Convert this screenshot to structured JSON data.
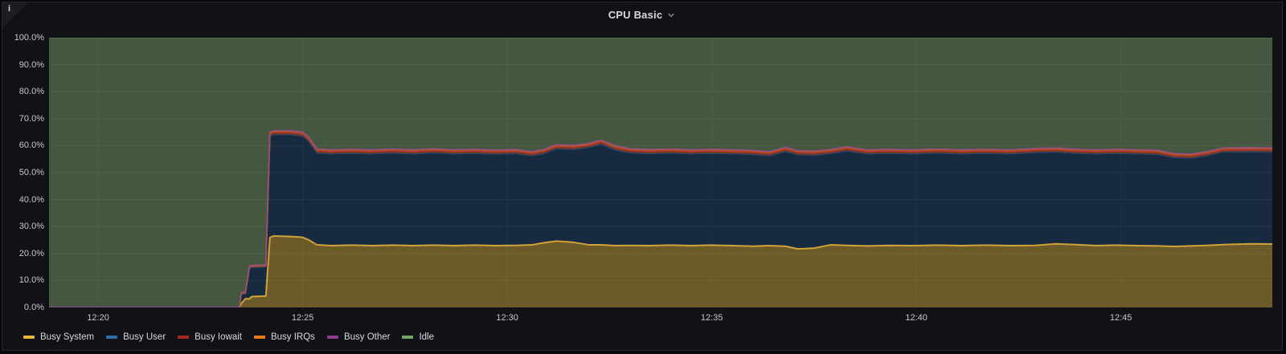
{
  "panel": {
    "title": "CPU Basic",
    "info_icon": "i"
  },
  "chart_data": {
    "type": "area",
    "stacked": true,
    "title": "CPU Basic",
    "unit": "percent",
    "x_unit": "minutes after 12:00",
    "x_range": [
      18.8,
      48.7
    ],
    "ylim": [
      0,
      100
    ],
    "grid": true,
    "legend_position": "bottom",
    "y_ticks": [
      {
        "v": 0,
        "label": "0.0%"
      },
      {
        "v": 10,
        "label": "10.0%"
      },
      {
        "v": 20,
        "label": "20.0%"
      },
      {
        "v": 30,
        "label": "30.0%"
      },
      {
        "v": 40,
        "label": "40.0%"
      },
      {
        "v": 50,
        "label": "50.0%"
      },
      {
        "v": 60,
        "label": "60.0%"
      },
      {
        "v": 70,
        "label": "70.0%"
      },
      {
        "v": 80,
        "label": "80.0%"
      },
      {
        "v": 90,
        "label": "90.0%"
      },
      {
        "v": 100,
        "label": "100.0%"
      }
    ],
    "x_ticks": [
      {
        "t": 20,
        "label": "12:20"
      },
      {
        "t": 25,
        "label": "12:25"
      },
      {
        "t": 30,
        "label": "12:30"
      },
      {
        "t": 35,
        "label": "12:35"
      },
      {
        "t": 40,
        "label": "12:40"
      },
      {
        "t": 45,
        "label": "12:45"
      }
    ],
    "t": [
      18.8,
      23.45,
      23.5,
      23.6,
      23.7,
      23.75,
      24.05,
      24.1,
      24.2,
      24.3,
      24.7,
      25.0,
      25.15,
      25.35,
      25.7,
      26.2,
      26.7,
      27.2,
      27.7,
      28.2,
      28.7,
      29.2,
      29.7,
      30.2,
      30.6,
      30.9,
      31.2,
      31.6,
      32.0,
      32.3,
      32.65,
      33.0,
      33.5,
      34.0,
      34.5,
      35.0,
      35.5,
      36.0,
      36.4,
      36.8,
      37.1,
      37.5,
      37.9,
      38.3,
      38.8,
      39.3,
      39.9,
      40.5,
      41.1,
      41.7,
      42.3,
      42.9,
      43.4,
      43.9,
      44.4,
      44.9,
      45.4,
      45.9,
      46.3,
      46.7,
      47.1,
      47.5,
      48.2,
      48.7
    ],
    "series": [
      {
        "name": "Busy System",
        "legend_color": "#EAB839",
        "line_color": "#CFA33A",
        "fill_color": "#6C5A28",
        "line_width": 2,
        "values": [
          0,
          0,
          1.5,
          3.2,
          3.2,
          4,
          4.2,
          4.2,
          26,
          26.5,
          26.3,
          26,
          25,
          23.2,
          22.9,
          23.1,
          22.9,
          23.1,
          22.9,
          23.1,
          22.9,
          23.1,
          22.9,
          23,
          23.2,
          24,
          24.6,
          24.2,
          23.2,
          23.2,
          22.9,
          23,
          22.9,
          23.1,
          22.9,
          23.1,
          22.9,
          22.7,
          22.9,
          22.7,
          21.7,
          22,
          23.2,
          23,
          22.8,
          23,
          22.9,
          23.1,
          22.9,
          23.1,
          22.9,
          23,
          23.6,
          23.3,
          22.9,
          23.1,
          22.9,
          22.8,
          22.6,
          22.8,
          23,
          23.3,
          23.6,
          23.5
        ]
      },
      {
        "name": "Busy User",
        "legend_color": "#2F6DA6",
        "line_color": "#2B4A6B",
        "fill_color": "#172A40",
        "line_width": 1.2,
        "values": [
          0,
          0,
          3.3,
          1.8,
          11.3,
          10.8,
          10.8,
          10.8,
          37.5,
          37.5,
          37.7,
          37.5,
          36.5,
          34,
          34,
          34,
          34,
          34.1,
          34,
          34.2,
          34,
          34,
          33.9,
          34,
          33,
          33,
          34.2,
          34.3,
          36.1,
          37.3,
          35.4,
          34.3,
          34.1,
          34.1,
          34,
          34,
          34,
          34,
          33.3,
          35.1,
          34.9,
          34.4,
          33.8,
          35,
          34.1,
          34.1,
          34,
          34.1,
          34,
          34,
          34,
          34.4,
          34,
          33.8,
          34,
          34,
          34,
          33.9,
          32.9,
          32.5,
          33.2,
          34.3,
          34.1,
          34.1
        ]
      },
      {
        "name": "Busy Iowait",
        "legend_color": "#A3271E",
        "line_color": "#A93A2C",
        "fill_color": "#74301F",
        "line_width": 1.8,
        "values": [
          0,
          0,
          0.4,
          0.4,
          0.4,
          0.4,
          0.4,
          0.4,
          0.8,
          0.8,
          0.8,
          0.8,
          0.8,
          0.8,
          0.8,
          0.8,
          0.8,
          0.8,
          0.8,
          0.8,
          0.8,
          0.8,
          0.8,
          0.8,
          0.8,
          0.8,
          0.8,
          0.8,
          0.8,
          0.8,
          0.8,
          0.8,
          0.8,
          0.8,
          0.8,
          0.8,
          0.8,
          0.8,
          0.8,
          0.8,
          0.8,
          0.8,
          0.8,
          0.8,
          0.8,
          0.8,
          0.8,
          0.8,
          0.8,
          0.8,
          0.8,
          0.8,
          0.8,
          0.8,
          0.8,
          0.8,
          0.8,
          0.8,
          0.8,
          0.8,
          0.8,
          0.8,
          0.8,
          0.8
        ]
      },
      {
        "name": "Busy IRQs",
        "legend_color": "#EB7B18",
        "line_color": "#C96A20",
        "fill_color": "#9E511D",
        "line_width": 1.8,
        "values": [
          0,
          0,
          0.3,
          0.3,
          0.3,
          0.3,
          0.3,
          0.3,
          0.7,
          0.7,
          0.7,
          0.7,
          0.7,
          0.7,
          0.7,
          0.7,
          0.7,
          0.7,
          0.7,
          0.7,
          0.7,
          0.7,
          0.7,
          0.7,
          0.7,
          0.7,
          0.7,
          0.7,
          0.7,
          0.7,
          0.7,
          0.7,
          0.7,
          0.7,
          0.7,
          0.7,
          0.7,
          0.7,
          0.7,
          0.7,
          0.7,
          0.7,
          0.7,
          0.7,
          0.7,
          0.7,
          0.7,
          0.7,
          0.7,
          0.7,
          0.7,
          0.7,
          0.7,
          0.7,
          0.7,
          0.7,
          0.7,
          0.7,
          0.7,
          0.7,
          0.7,
          0.7,
          0.7,
          0.7
        ]
      },
      {
        "name": "Busy Other",
        "legend_color": "#8E3C8E",
        "line_color": "#8E4A8E",
        "fill_color": "#5A2F56",
        "line_width": 1.4,
        "values": [
          0.1,
          0.1,
          0.1,
          0.1,
          0.1,
          0.1,
          0.1,
          0.1,
          0.1,
          0.1,
          0.1,
          0.1,
          0.1,
          0.1,
          0.1,
          0.1,
          0.1,
          0.1,
          0.1,
          0.1,
          0.1,
          0.1,
          0.1,
          0.1,
          0.1,
          0.1,
          0.1,
          0.1,
          0.1,
          0.1,
          0.1,
          0.1,
          0.1,
          0.1,
          0.1,
          0.1,
          0.1,
          0.1,
          0.1,
          0.1,
          0.1,
          0.1,
          0.1,
          0.1,
          0.1,
          0.1,
          0.1,
          0.1,
          0.1,
          0.1,
          0.1,
          0.1,
          0.1,
          0.1,
          0.1,
          0.1,
          0.1,
          0.1,
          0.1,
          0.1,
          0.1,
          0.1,
          0.1,
          0.1
        ]
      },
      {
        "name": "Idle",
        "legend_color": "#79A56A",
        "line_color": "#57714B",
        "fill_color": "#465740",
        "line_width": 1.2,
        "values": "remainder_to_100"
      }
    ],
    "grid_color_h": "rgba(255,255,255,0.055)",
    "grid_color_v": "rgba(255,255,255,0.04)"
  }
}
